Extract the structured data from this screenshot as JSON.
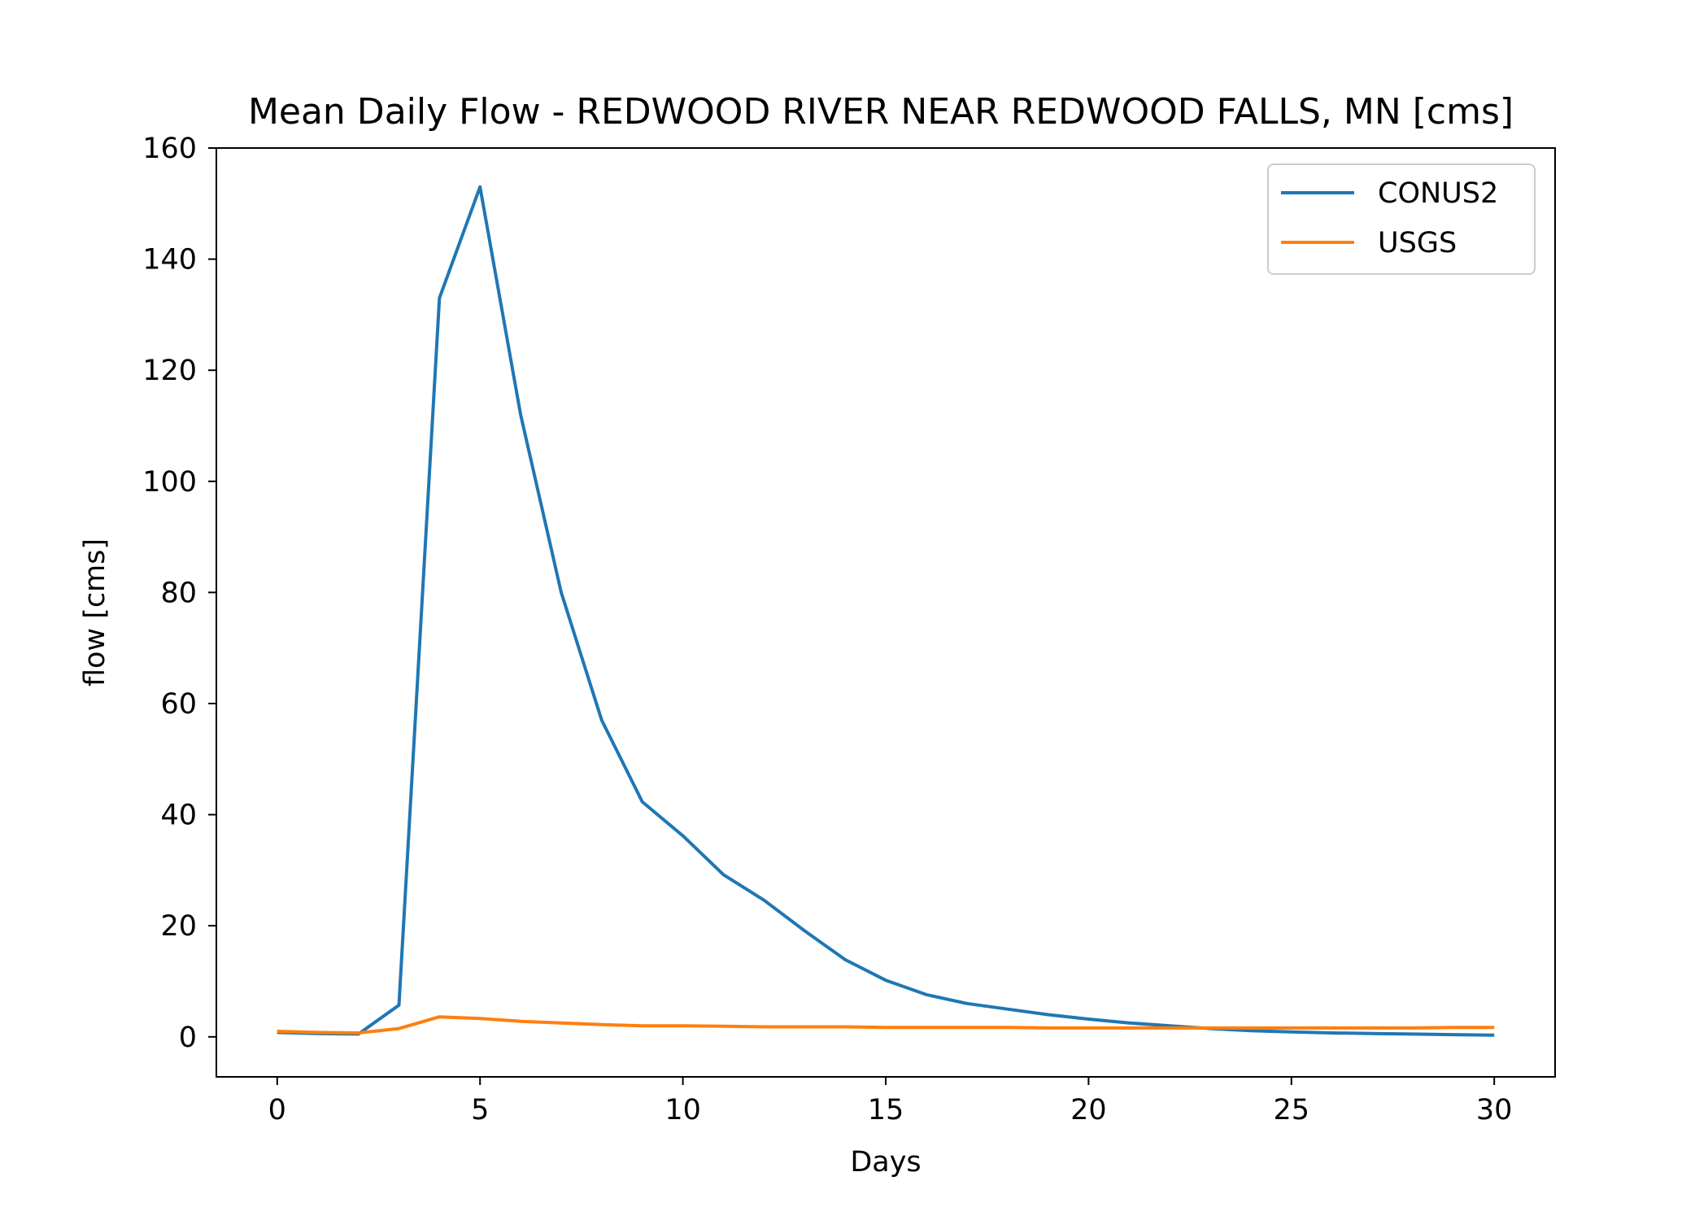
{
  "chart_data": {
    "type": "line",
    "title": "Mean Daily Flow - REDWOOD RIVER NEAR REDWOOD FALLS, MN [cms]",
    "xlabel": "Days",
    "ylabel": "flow [cms]",
    "xlim": [
      -1.5,
      31.5
    ],
    "ylim": [
      -7.2,
      160
    ],
    "xticks": [
      0,
      5,
      10,
      15,
      20,
      25,
      30
    ],
    "yticks": [
      0,
      20,
      40,
      60,
      80,
      100,
      120,
      140,
      160
    ],
    "grid": false,
    "legend_position": "upper-right",
    "x": [
      0,
      1,
      2,
      3,
      4,
      5,
      6,
      7,
      8,
      9,
      10,
      11,
      12,
      13,
      14,
      15,
      16,
      17,
      18,
      19,
      20,
      21,
      22,
      23,
      24,
      25,
      26,
      27,
      28,
      29,
      30
    ],
    "series": [
      {
        "name": "CONUS2",
        "color": "#1f77b4",
        "values": [
          0.8,
          0.6,
          0.5,
          5.7,
          133,
          153,
          112,
          80,
          57,
          42.3,
          36.2,
          29.2,
          24.6,
          19.1,
          13.9,
          10.2,
          7.6,
          6.0,
          5.0,
          4.0,
          3.2,
          2.5,
          2.0,
          1.5,
          1.1,
          0.9,
          0.7,
          0.6,
          0.5,
          0.4,
          0.3
        ]
      },
      {
        "name": "USGS",
        "color": "#ff7f0e",
        "values": [
          1.0,
          0.8,
          0.7,
          1.5,
          3.6,
          3.3,
          2.8,
          2.5,
          2.2,
          2.0,
          2.0,
          1.9,
          1.8,
          1.8,
          1.8,
          1.7,
          1.7,
          1.7,
          1.7,
          1.6,
          1.6,
          1.6,
          1.6,
          1.6,
          1.6,
          1.6,
          1.6,
          1.6,
          1.6,
          1.7,
          1.7
        ]
      }
    ]
  }
}
